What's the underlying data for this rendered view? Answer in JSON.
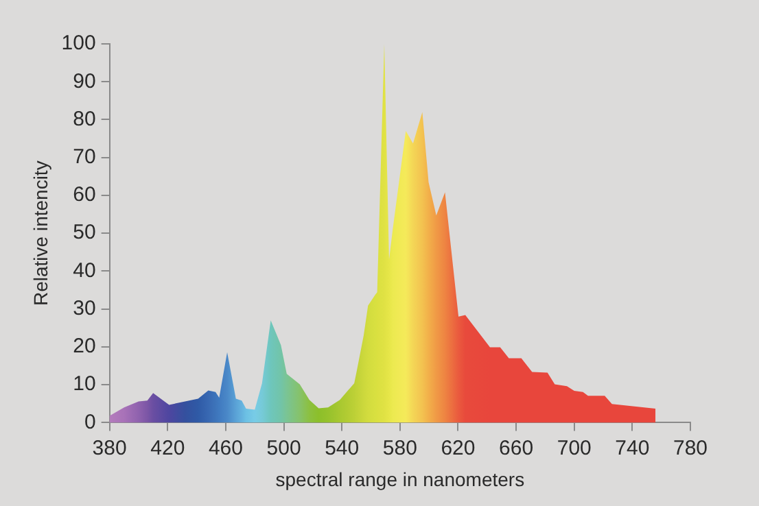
{
  "chart_data": {
    "type": "area",
    "xlabel": "spectral range in nanometers",
    "ylabel": "Relative intencity",
    "xlim": [
      380,
      780
    ],
    "xticks": [
      380,
      420,
      460,
      500,
      540,
      580,
      620,
      660,
      700,
      740,
      780
    ],
    "ylim": [
      0,
      100
    ],
    "yticks": [
      0,
      10,
      20,
      30,
      40,
      50,
      60,
      70,
      80,
      90,
      100
    ],
    "grid": false,
    "legend": false,
    "series": [
      {
        "x": [
          380,
          390,
          400,
          406,
          410,
          421,
          432,
          441,
          448,
          453,
          455.5,
          461,
          467,
          471,
          474,
          480,
          485,
          491,
          498,
          502,
          511,
          517.6,
          524,
          530.5,
          538.6,
          548.5,
          550,
          555,
          558,
          563,
          564.3,
          569.2,
          572.5,
          575,
          584,
          589,
          595.4,
          599.7,
          605,
          611,
          620.3,
          625,
          642,
          649,
          655,
          663.6,
          671,
          681.6,
          686.6,
          695,
          700,
          706,
          709.5,
          721,
          726,
          756
        ],
        "values": [
          1.8,
          4,
          5.6,
          5.8,
          7.8,
          4.7,
          5.6,
          6.3,
          8.5,
          8.1,
          6.6,
          18.6,
          6.3,
          5.8,
          3.7,
          3.4,
          10.4,
          27,
          20.5,
          12.9,
          10.1,
          6,
          3.8,
          4,
          6,
          10.4,
          13.2,
          23,
          30.9,
          33.8,
          34.4,
          100,
          43,
          51,
          77,
          73.7,
          82,
          63.5,
          54.7,
          60.8,
          28,
          28.4,
          19.9,
          19.9,
          17,
          17,
          13.4,
          13.2,
          10.1,
          9.6,
          8.4,
          8.1,
          7.1,
          7.1,
          4.9,
          3.7
        ],
        "colors": [
          "#b47cbc",
          "#a872b8",
          "#8f62ae",
          "#7c56a6",
          "#6a4ea2",
          "#4e46a0",
          "#34509e",
          "#2f5aa6",
          "#3868b2",
          "#3d74ba",
          "#407ac0",
          "#4a88c8",
          "#5aa2d6",
          "#64b2de",
          "#6cc0e4",
          "#78cce6",
          "#76cad8",
          "#6ec6bc",
          "#72c4a8",
          "#7ac494",
          "#86c26a",
          "#8cc040",
          "#8cbf2a",
          "#96c22c",
          "#a8c830",
          "#bcd036",
          "#c0d238",
          "#ccd83c",
          "#d2dc3e",
          "#d8e040",
          "#dae040",
          "#e0e244",
          "#e6e648",
          "#ecea50",
          "#f5ea5a",
          "#f4d656",
          "#f3c250",
          "#f2b04a",
          "#f09a46",
          "#ee8442",
          "#ea5a3e",
          "#e84a3c",
          "#e8463c",
          "#e8463c",
          "#e8463c",
          "#e8463c",
          "#e8463c",
          "#e8463c",
          "#e8463c",
          "#e8463c",
          "#e8463c",
          "#e8463c",
          "#e8463c",
          "#e8463c",
          "#e8463c",
          "#e8463c"
        ]
      }
    ]
  }
}
